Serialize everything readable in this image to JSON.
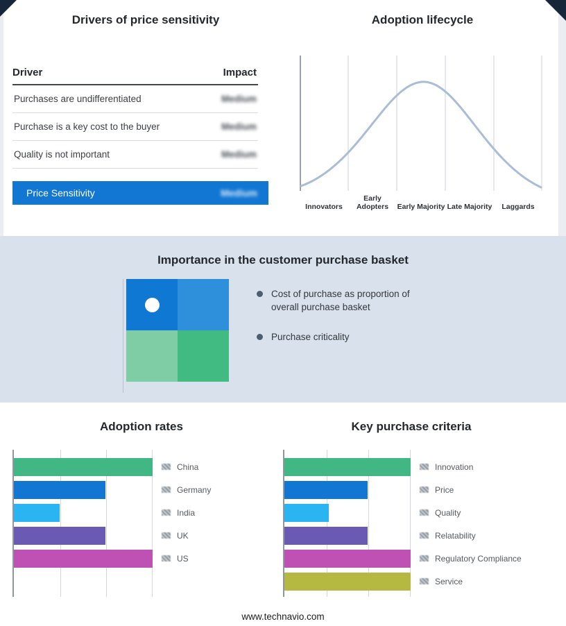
{
  "footer": "www.technavio.com",
  "colors": {
    "highlight_blue": "#1277d3",
    "band_bg": "#d9e1ec",
    "curve": "#a9bdd8"
  },
  "drivers": {
    "title": "Drivers of price sensitivity",
    "columns": {
      "driver": "Driver",
      "impact": "Impact"
    },
    "rows": [
      {
        "driver": "Purchases are undifferentiated",
        "impact": "Medium"
      },
      {
        "driver": "Purchase is a key cost to the buyer",
        "impact": "Medium"
      },
      {
        "driver": "Quality is not important",
        "impact": "Medium"
      }
    ],
    "highlight": {
      "label": "Price Sensitivity",
      "impact": "Medium"
    }
  },
  "lifecycle": {
    "title": "Adoption lifecycle",
    "stages": [
      "Innovators",
      "Early Adopters",
      "Early Majority",
      "Late Majority",
      "Laggards"
    ]
  },
  "basket": {
    "title": "Importance in the customer purchase basket",
    "bullets": [
      "Cost of purchase as proportion of overall purchase basket",
      "Purchase criticality"
    ],
    "quad_colors": [
      "#0f78d2",
      "#2e8fdb",
      "#7fcda5",
      "#41bb82"
    ]
  },
  "chart_data": [
    {
      "type": "bar",
      "orientation": "horizontal",
      "title": "Adoption rates",
      "categories": [
        "China",
        "Germany",
        "India",
        "UK",
        "US"
      ],
      "values": [
        100,
        66,
        33,
        66,
        100
      ],
      "xlim": [
        0,
        100
      ],
      "grid": true,
      "legend_position": "right",
      "colors": [
        "#41b883",
        "#1277d3",
        "#2ab5f2",
        "#6a5ab4",
        "#bf51b4"
      ]
    },
    {
      "type": "bar",
      "orientation": "horizontal",
      "title": "Key purchase criteria",
      "categories": [
        "Innovation",
        "Price",
        "Quality",
        "Relatability",
        "Regulatory Compliance",
        "Service"
      ],
      "values": [
        100,
        66,
        35,
        66,
        100,
        100
      ],
      "xlim": [
        0,
        100
      ],
      "grid": true,
      "legend_position": "right",
      "colors": [
        "#41b883",
        "#1277d3",
        "#2ab5f2",
        "#6a5ab4",
        "#bf51b4",
        "#b5b942"
      ]
    }
  ]
}
